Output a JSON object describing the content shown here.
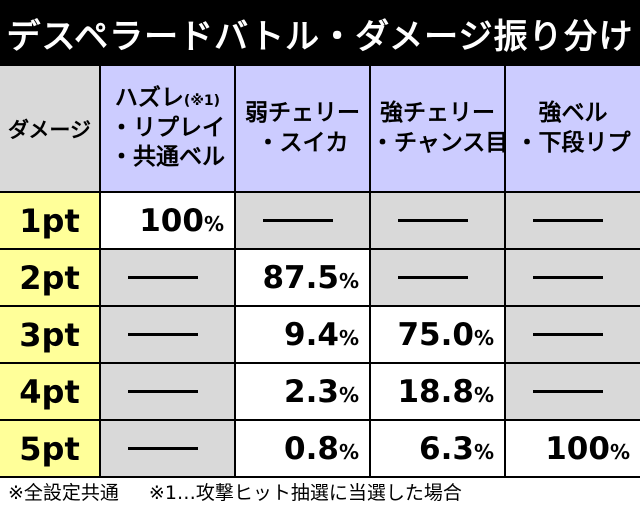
{
  "title": "デスペラードバトル・ダメージ振り分け",
  "header": {
    "damage_label": "ダメージ",
    "columns": [
      {
        "lines": [
          "ハズレ",
          "・リプレイ",
          "・共通ベル"
        ],
        "note": "(※1)"
      },
      {
        "lines": [
          "弱チェリー",
          "・スイカ"
        ],
        "note": ""
      },
      {
        "lines": [
          "強チェリー",
          "・チャンス目"
        ],
        "note": ""
      },
      {
        "lines": [
          "強ベル",
          "・下段リプ"
        ],
        "note": ""
      }
    ]
  },
  "rows": [
    {
      "pt": "1pt",
      "cells": [
        {
          "num": "100",
          "pct": "%"
        },
        {
          "dash": true
        },
        {
          "dash": true
        },
        {
          "dash": true
        }
      ]
    },
    {
      "pt": "2pt",
      "cells": [
        {
          "dash": true
        },
        {
          "num": "87.5",
          "pct": "%"
        },
        {
          "dash": true
        },
        {
          "dash": true
        }
      ]
    },
    {
      "pt": "3pt",
      "cells": [
        {
          "dash": true
        },
        {
          "num": "9.4",
          "pct": "%"
        },
        {
          "num": "75.0",
          "pct": "%"
        },
        {
          "dash": true
        }
      ]
    },
    {
      "pt": "4pt",
      "cells": [
        {
          "dash": true
        },
        {
          "num": "2.3",
          "pct": "%"
        },
        {
          "num": "18.8",
          "pct": "%"
        },
        {
          "dash": true
        }
      ]
    },
    {
      "pt": "5pt",
      "cells": [
        {
          "dash": true
        },
        {
          "num": "0.8",
          "pct": "%"
        },
        {
          "num": "6.3",
          "pct": "%"
        },
        {
          "num": "100",
          "pct": "%"
        }
      ]
    }
  ],
  "footer": {
    "note1": "※全設定共通",
    "note2": "※1…攻撃ヒット抽選に当選した場合"
  },
  "colors": {
    "header_bg": "#ccccff",
    "pt_bg": "#ffff99",
    "gray_cell": "#d9d9d9",
    "title_bg": "#000000"
  }
}
